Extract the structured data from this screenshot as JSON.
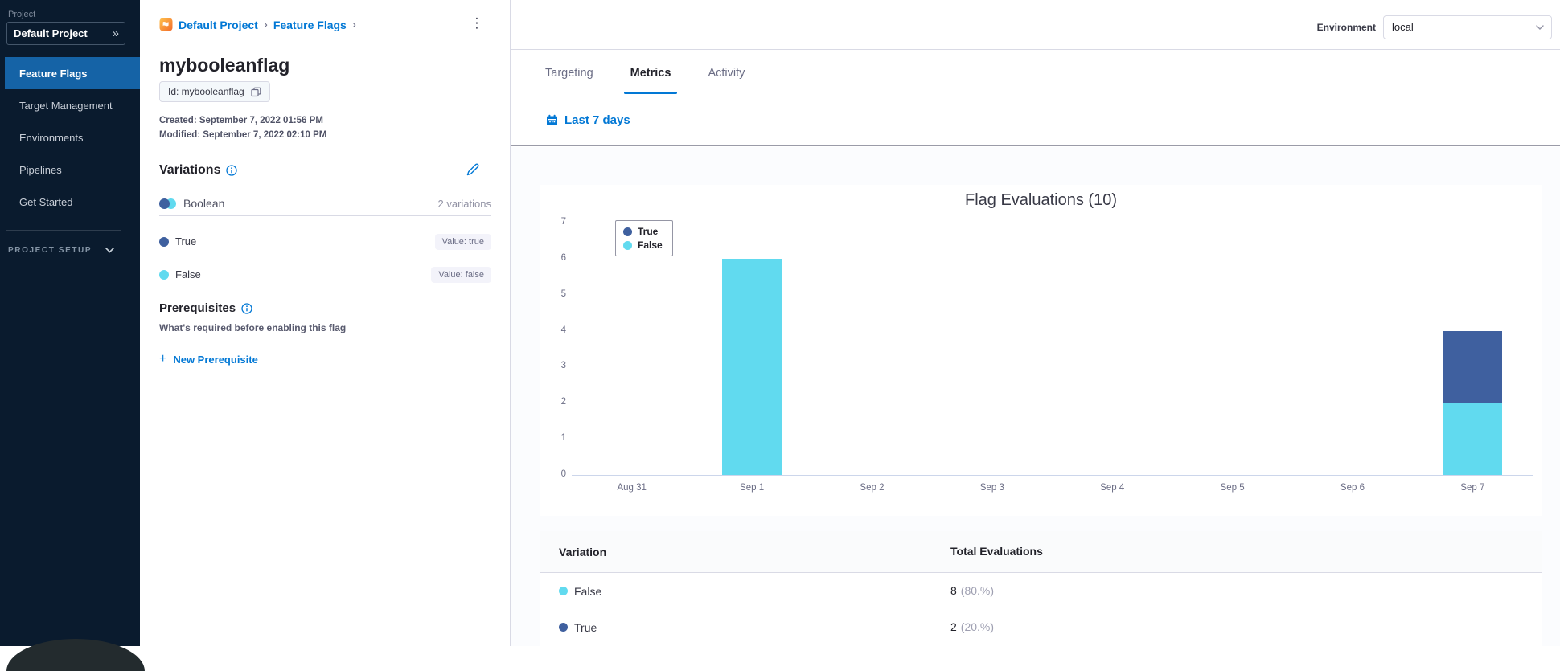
{
  "sidebar": {
    "project_label": "Project",
    "project_name": "Default Project",
    "items": [
      {
        "label": "Feature Flags",
        "active": true
      },
      {
        "label": "Target Management",
        "active": false
      },
      {
        "label": "Environments",
        "active": false
      },
      {
        "label": "Pipelines",
        "active": false
      },
      {
        "label": "Get Started",
        "active": false
      }
    ],
    "section_label": "PROJECT SETUP"
  },
  "breadcrumb": {
    "items": [
      "Default Project",
      "Feature Flags"
    ]
  },
  "flag": {
    "name": "mybooleanflag",
    "id_label": "Id: mybooleanflag",
    "created": "Created: September 7, 2022 01:56 PM",
    "modified": "Modified: September 7, 2022 02:10 PM"
  },
  "variations": {
    "title": "Variations",
    "type_label": "Boolean",
    "count_label": "2 variations",
    "items": [
      {
        "name": "True",
        "value_label": "Value: true",
        "color": "#3f609f"
      },
      {
        "name": "False",
        "value_label": "Value: false",
        "color": "#61daef"
      }
    ]
  },
  "prerequisites": {
    "title": "Prerequisites",
    "subtitle": "What's required before enabling this flag",
    "new_button_icon": "+",
    "new_button_label": "New Prerequisite"
  },
  "header": {
    "environment_label": "Environment",
    "environment_value": "local"
  },
  "tabs": [
    {
      "label": "Targeting",
      "active": false
    },
    {
      "label": "Metrics",
      "active": true
    },
    {
      "label": "Activity",
      "active": false
    }
  ],
  "date_filter_label": "Last 7 days",
  "chart_data": {
    "type": "bar",
    "stacked": true,
    "title": "Flag Evaluations (10)",
    "categories": [
      "Aug 31",
      "Sep 1",
      "Sep 2",
      "Sep 3",
      "Sep 4",
      "Sep 5",
      "Sep 6",
      "Sep 7"
    ],
    "series": [
      {
        "name": "True",
        "color": "#3f609f",
        "values": [
          0,
          0,
          0,
          0,
          0,
          0,
          0,
          2
        ]
      },
      {
        "name": "False",
        "color": "#61daef",
        "values": [
          0,
          6,
          0,
          0,
          0,
          0,
          0,
          2
        ]
      }
    ],
    "xlabel": "",
    "ylabel": "",
    "ylim": [
      0,
      7
    ],
    "ytick_interval": 1,
    "grid": false,
    "legend_position": "top-left"
  },
  "metrics_table": {
    "columns": [
      "Variation",
      "Total Evaluations"
    ],
    "rows": [
      {
        "variation": "False",
        "color": "#61daef",
        "total": "8",
        "percent": "(80.%)"
      },
      {
        "variation": "True",
        "color": "#3f609f",
        "total": "2",
        "percent": "(20.%)"
      }
    ]
  }
}
